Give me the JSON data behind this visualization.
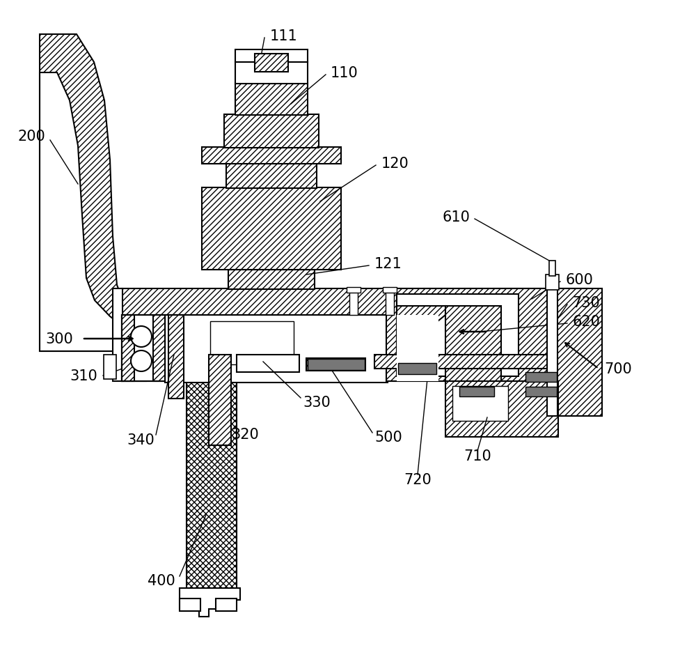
{
  "bg_color": "#ffffff",
  "figsize": [
    10.0,
    9.54
  ],
  "dpi": 100
}
